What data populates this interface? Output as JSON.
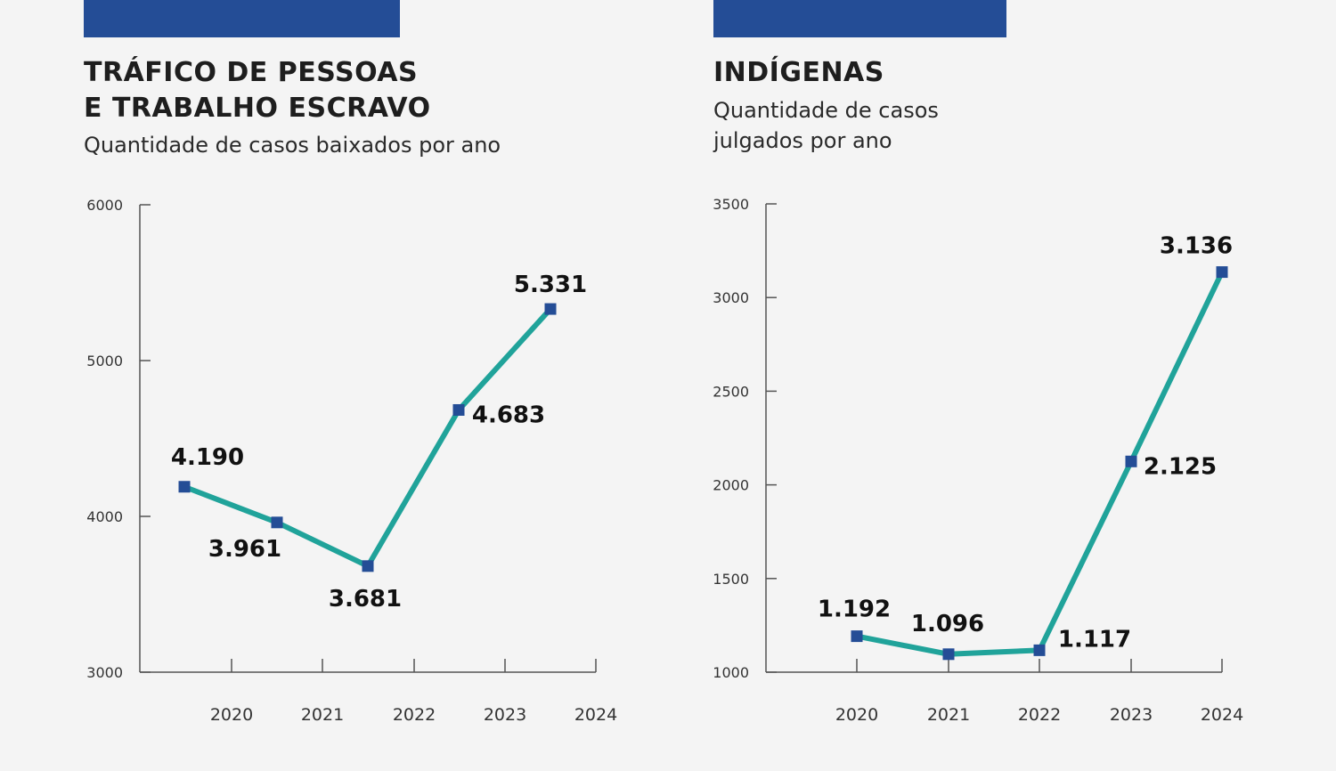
{
  "colors": {
    "header_bar": "#244d96",
    "line": "#20a39a",
    "marker": "#244d96",
    "axis": "#555555"
  },
  "chart_data": [
    {
      "type": "line",
      "title": "TRÁFICO DE PESSOAS\nE TRABALHO ESCRAVO",
      "subtitle": "Quantidade de casos baixados por ano",
      "categories": [
        "2020",
        "2021",
        "2022",
        "2023",
        "2024"
      ],
      "values": [
        4190,
        3961,
        3681,
        4683,
        5331
      ],
      "data_labels": [
        "4.190",
        "3.961",
        "3.681",
        "4.683",
        "5.331"
      ],
      "yticks": [
        3000,
        4000,
        5000,
        6000
      ],
      "ylim": [
        3000,
        6000
      ],
      "grid": false
    },
    {
      "type": "line",
      "title": "INDÍGENAS",
      "subtitle": "Quantidade de casos\njulgados por ano",
      "categories": [
        "2020",
        "2021",
        "2022",
        "2023",
        "2024"
      ],
      "values": [
        1192,
        1096,
        1117,
        2125,
        3136
      ],
      "data_labels": [
        "1.192",
        "1.096",
        "1.117",
        "2.125",
        "3.136"
      ],
      "yticks": [
        1000,
        1500,
        2000,
        2500,
        3000,
        3500
      ],
      "ylim": [
        1000,
        3500
      ],
      "grid": false
    }
  ]
}
